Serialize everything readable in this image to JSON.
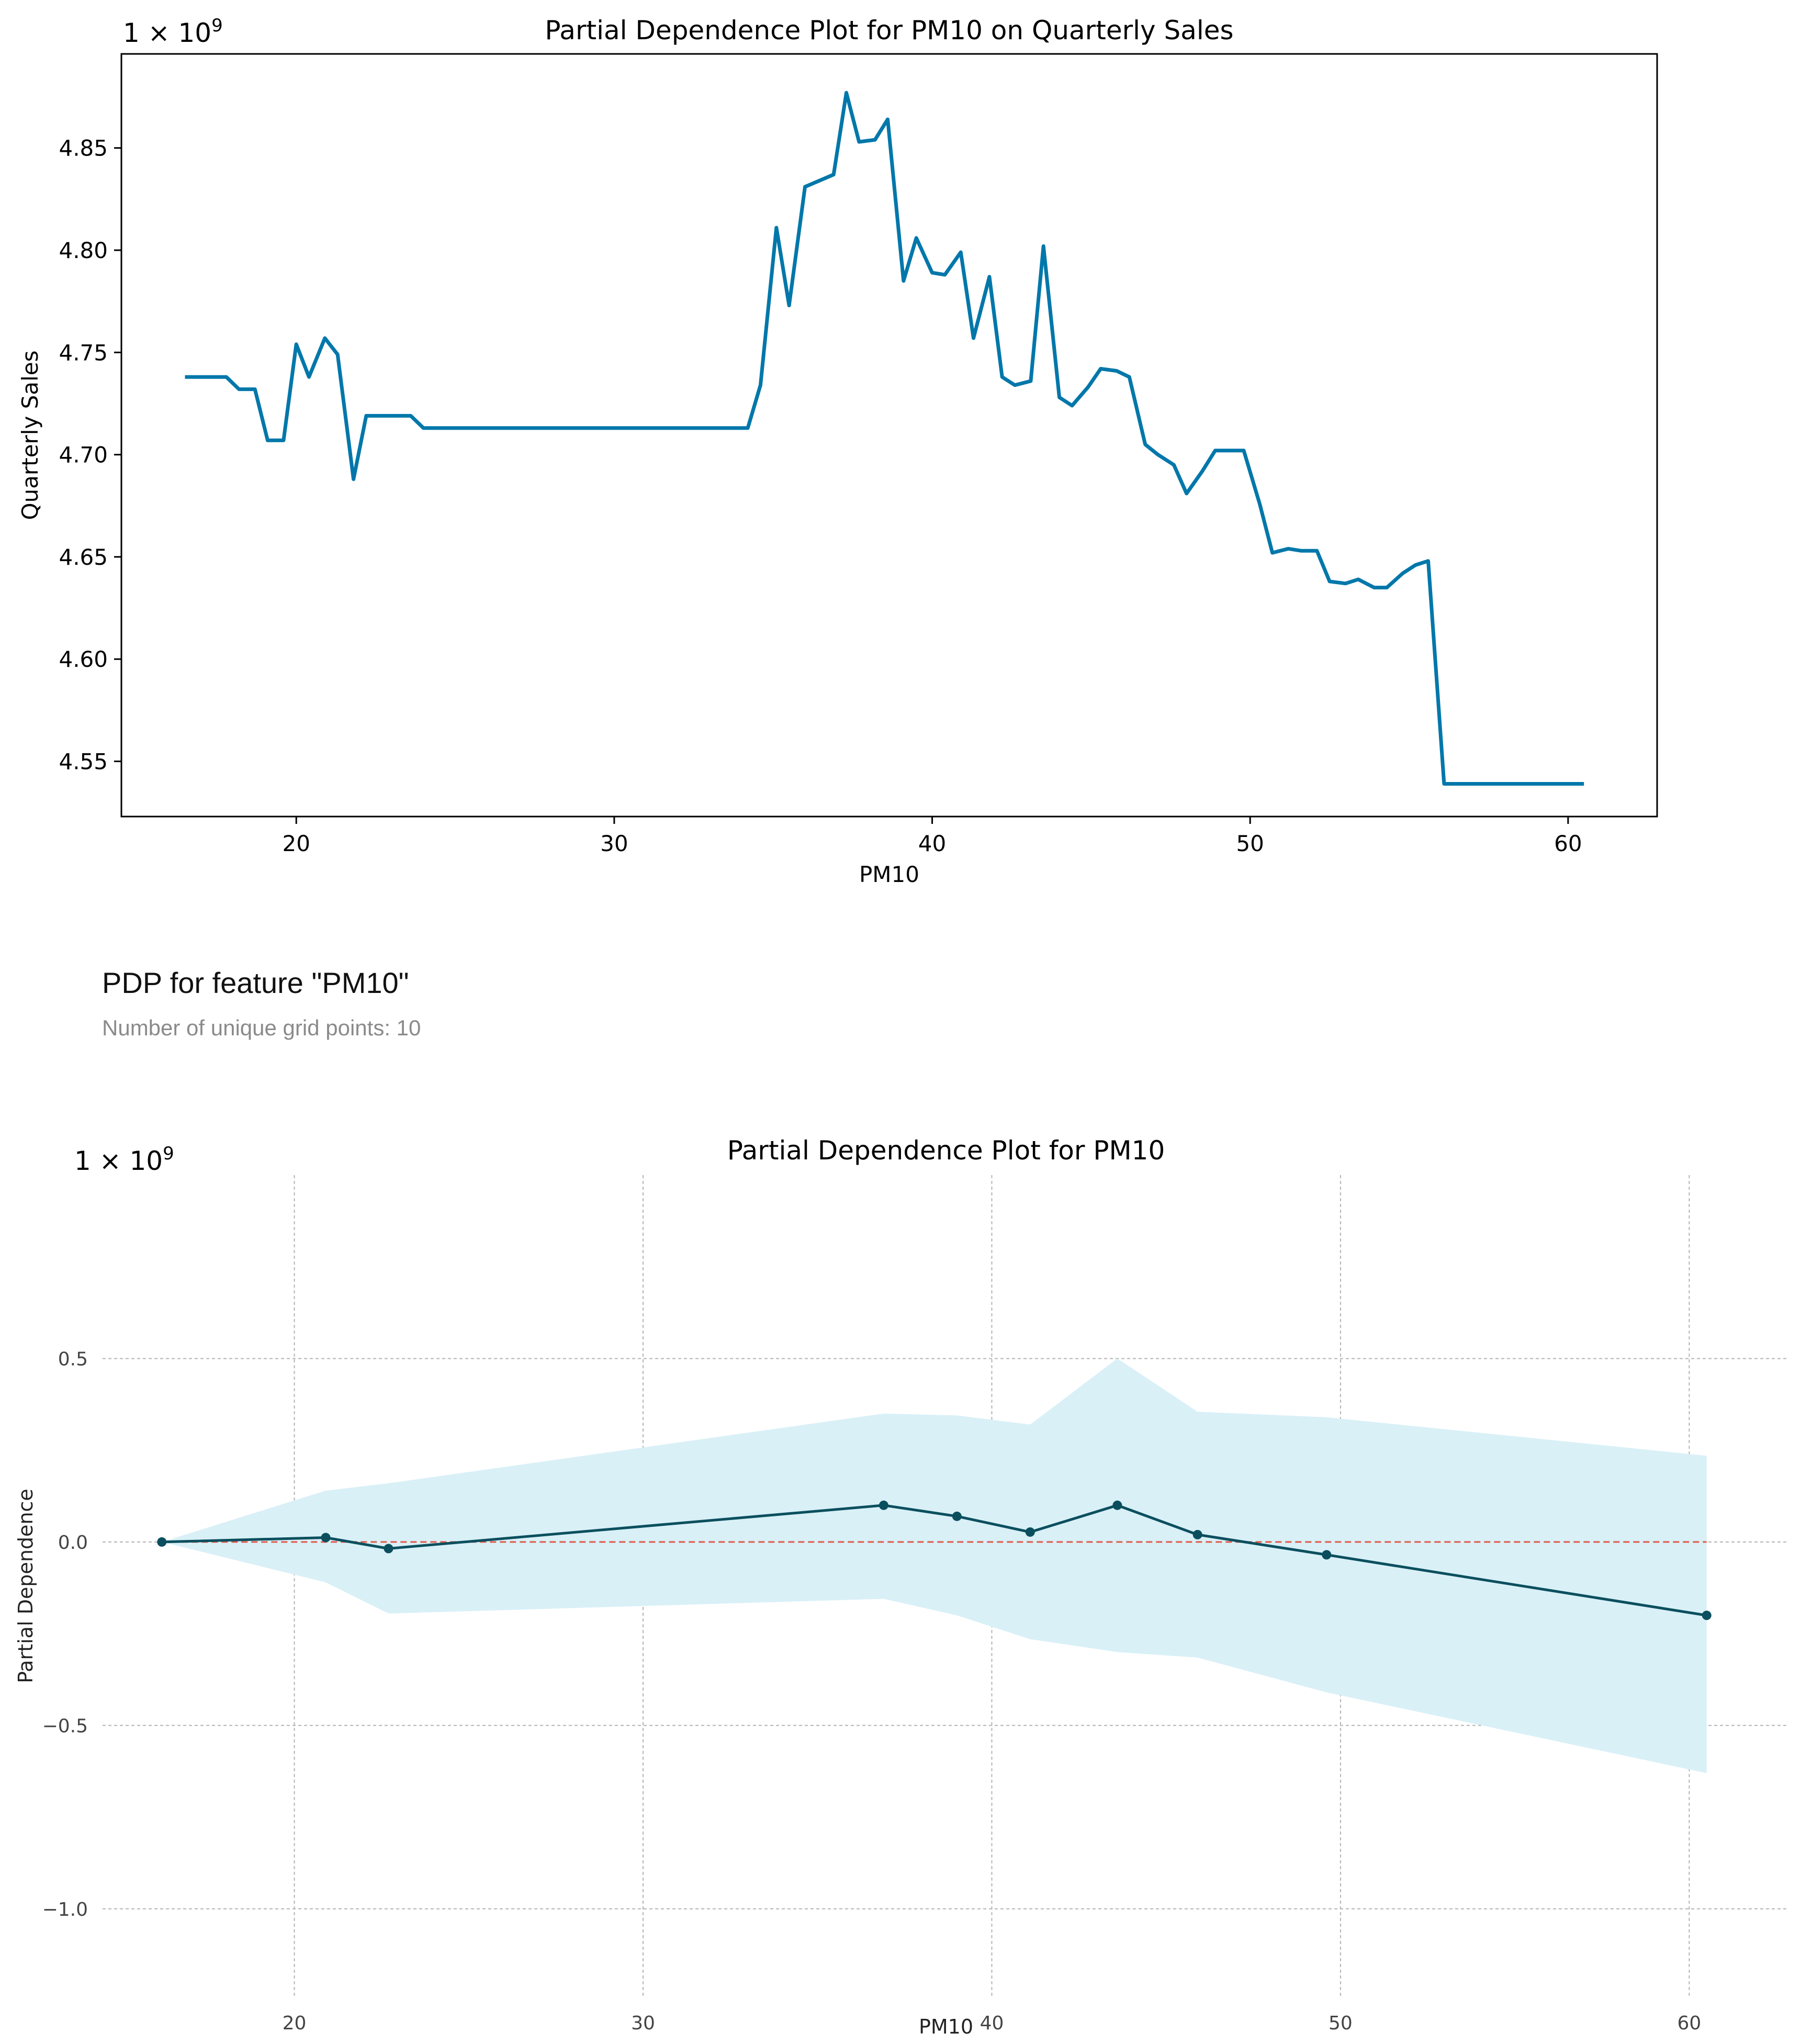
{
  "header": {
    "title": "PDP for feature \"PM10\"",
    "subtitle": "Number of unique grid points: 10"
  },
  "chart_data": [
    {
      "type": "line",
      "title": "Partial Dependence Plot for PM10 on Quarterly Sales",
      "xlabel": "PM10",
      "ylabel": "Quarterly Sales",
      "multiplier": "1 × 10",
      "multiplier_exp": "9",
      "xlim": [
        14.5,
        62.8
      ],
      "ylim": [
        4.523,
        4.896
      ],
      "x_ticks": [
        20,
        30,
        40,
        50,
        60
      ],
      "y_ticks": [
        4.55,
        4.6,
        4.65,
        4.7,
        4.75,
        4.8,
        4.85
      ],
      "x_tick_labels": [
        "20",
        "30",
        "40",
        "50",
        "60"
      ],
      "y_tick_labels": [
        "4.55",
        "4.60",
        "4.65",
        "4.70",
        "4.75",
        "4.80",
        "4.85"
      ],
      "line_color": "#0077aa",
      "series": [
        {
          "name": "Quarterly Sales",
          "x": [
            16.5,
            17.8,
            18.2,
            18.7,
            19.1,
            19.6,
            20.0,
            20.4,
            20.9,
            21.3,
            21.8,
            22.2,
            22.7,
            23.1,
            23.6,
            24.0,
            34.2,
            34.6,
            35.1,
            35.5,
            36.0,
            36.9,
            37.3,
            37.7,
            38.2,
            38.6,
            39.1,
            39.5,
            40.0,
            40.4,
            40.9,
            41.3,
            41.8,
            42.2,
            42.6,
            43.1,
            43.5,
            44.0,
            44.4,
            44.9,
            45.3,
            45.8,
            46.2,
            46.7,
            47.1,
            47.6,
            48.0,
            48.5,
            48.9,
            49.4,
            49.8,
            50.3,
            50.7,
            51.2,
            51.6,
            52.1,
            52.5,
            53.0,
            53.4,
            53.9,
            54.3,
            54.8,
            55.2,
            55.6,
            56.1,
            60.5
          ],
          "y": [
            4.738,
            4.738,
            4.732,
            4.732,
            4.707,
            4.707,
            4.754,
            4.738,
            4.757,
            4.749,
            4.688,
            4.719,
            4.719,
            4.719,
            4.719,
            4.713,
            4.713,
            4.734,
            4.811,
            4.773,
            4.831,
            4.837,
            4.877,
            4.853,
            4.854,
            4.864,
            4.785,
            4.806,
            4.789,
            4.788,
            4.799,
            4.757,
            4.787,
            4.738,
            4.734,
            4.736,
            4.802,
            4.728,
            4.724,
            4.733,
            4.742,
            4.741,
            4.738,
            4.705,
            4.7,
            4.695,
            4.681,
            4.692,
            4.702,
            4.702,
            4.702,
            4.676,
            4.652,
            4.654,
            4.653,
            4.653,
            4.638,
            4.637,
            4.639,
            4.635,
            4.635,
            4.642,
            4.646,
            4.648,
            4.539,
            4.539
          ]
        }
      ]
    },
    {
      "type": "line",
      "title": "Partial Dependence Plot for PM10",
      "xlabel": "PM10",
      "ylabel": "Partial Dependence",
      "multiplier": "1 × 10",
      "multiplier_exp": "9",
      "xlim": [
        14.5,
        62.8
      ],
      "ylim": [
        -1.24,
        1.0
      ],
      "x_ticks": [
        20,
        30,
        40,
        50,
        60
      ],
      "y_ticks": [
        -1.0,
        -0.5,
        0.0,
        0.5
      ],
      "x_tick_labels": [
        "20",
        "30",
        "40",
        "50",
        "60"
      ],
      "y_tick_labels": [
        "−1.0",
        "−0.5",
        "0.0",
        "0.5"
      ],
      "grid": true,
      "zero_line_color": "#e05a47",
      "line_color": "#0b4f5e",
      "band_color": "#d9f0f7",
      "series": [
        {
          "name": "Partial Dependence",
          "x": [
            16.2,
            20.9,
            22.7,
            36.9,
            39.0,
            41.1,
            43.6,
            45.9,
            49.6,
            60.5
          ],
          "y": [
            0.0,
            0.012,
            -0.018,
            0.1,
            0.07,
            0.027,
            0.1,
            0.02,
            -0.035,
            -0.2
          ],
          "upper": [
            0.0,
            0.14,
            0.16,
            0.35,
            0.345,
            0.32,
            0.5,
            0.355,
            0.34,
            0.235
          ],
          "lower": [
            0.0,
            -0.11,
            -0.195,
            -0.155,
            -0.2,
            -0.265,
            -0.3,
            -0.315,
            -0.41,
            -0.63
          ]
        }
      ]
    }
  ]
}
